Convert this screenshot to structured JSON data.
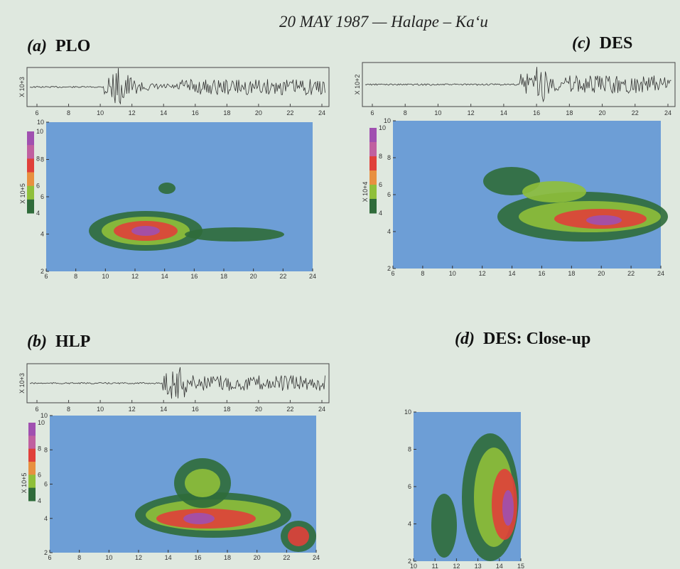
{
  "title": "20 MAY 1987 — Halape – Ka‘u",
  "panels": [
    {
      "tag": "(a)",
      "name": "PLO",
      "seismogram": {
        "axis_label": "X 10+3",
        "xticks": [
          6,
          8,
          10,
          12,
          14,
          16,
          18,
          20,
          22,
          24
        ]
      },
      "spectrogram": {
        "axis_label": "X 10+5",
        "xticks": [
          6,
          8,
          10,
          12,
          14,
          16,
          18,
          20,
          22,
          24
        ],
        "yticks": [
          2,
          4,
          6,
          8,
          10
        ],
        "colorbar_ticks": [
          4,
          6,
          8,
          10
        ]
      }
    },
    {
      "tag": "(b)",
      "name": "HLP",
      "seismogram": {
        "axis_label": "X 10+3",
        "xticks": [
          6,
          8,
          10,
          12,
          14,
          16,
          18,
          20,
          22,
          24
        ]
      },
      "spectrogram": {
        "axis_label": "X 10+5",
        "xticks": [
          6,
          8,
          10,
          12,
          14,
          16,
          18,
          20,
          22,
          24
        ],
        "yticks": [
          2,
          4,
          6,
          8,
          10
        ],
        "colorbar_ticks": [
          4,
          6,
          8,
          10
        ]
      }
    },
    {
      "tag": "(c)",
      "name": "DES",
      "seismogram": {
        "axis_label": "X 10+2",
        "xticks": [
          6,
          8,
          10,
          12,
          14,
          16,
          18,
          20,
          22,
          24
        ]
      },
      "spectrogram": {
        "axis_label": "X 10+4",
        "xticks": [
          6,
          8,
          10,
          12,
          14,
          16,
          18,
          20,
          22,
          24
        ],
        "yticks": [
          2,
          4,
          6,
          8,
          10
        ],
        "colorbar_ticks": [
          4,
          6,
          8,
          10
        ]
      }
    },
    {
      "tag": "(d)",
      "name": "DES: Close-up",
      "spectrogram": {
        "xticks": [
          10,
          11,
          12,
          13,
          14,
          15
        ],
        "yticks": [
          2,
          4,
          6,
          8,
          10
        ]
      }
    }
  ]
}
